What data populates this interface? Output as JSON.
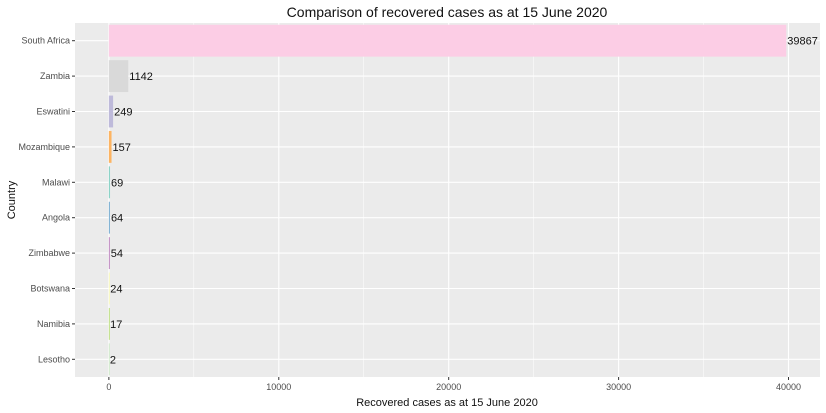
{
  "chart_data": {
    "type": "bar",
    "orientation": "horizontal",
    "title": "Comparison of recovered cases as at 15 June 2020",
    "xlabel": "Recovered cases as at 15 June 2020",
    "ylabel": "Country",
    "categories": [
      "South Africa",
      "Zambia",
      "Eswatini",
      "Mozambique",
      "Malawi",
      "Angola",
      "Zimbabwe",
      "Botswana",
      "Namibia",
      "Lesotho"
    ],
    "values": [
      39867,
      1142,
      249,
      157,
      69,
      64,
      54,
      24,
      17,
      2
    ],
    "data_labels": [
      "39867",
      "1142",
      "249",
      "157",
      "69",
      "64",
      "54",
      "24",
      "17",
      "2"
    ],
    "bar_colors": [
      "#fccde5",
      "#d9d9d9",
      "#bebada",
      "#fdb462",
      "#8dd3c7",
      "#80b1d3",
      "#bc80bd",
      "#ffffb3",
      "#b3de69",
      "#ccebc5"
    ],
    "xlim": [
      -1993,
      41853
    ],
    "xticks": [
      0,
      10000,
      20000,
      30000,
      40000
    ],
    "xtick_labels": [
      "0",
      "10000",
      "20000",
      "30000",
      "40000"
    ],
    "grid": true,
    "legend": "none",
    "panel_background": "#ebebeb",
    "grid_color": "#ffffff"
  }
}
